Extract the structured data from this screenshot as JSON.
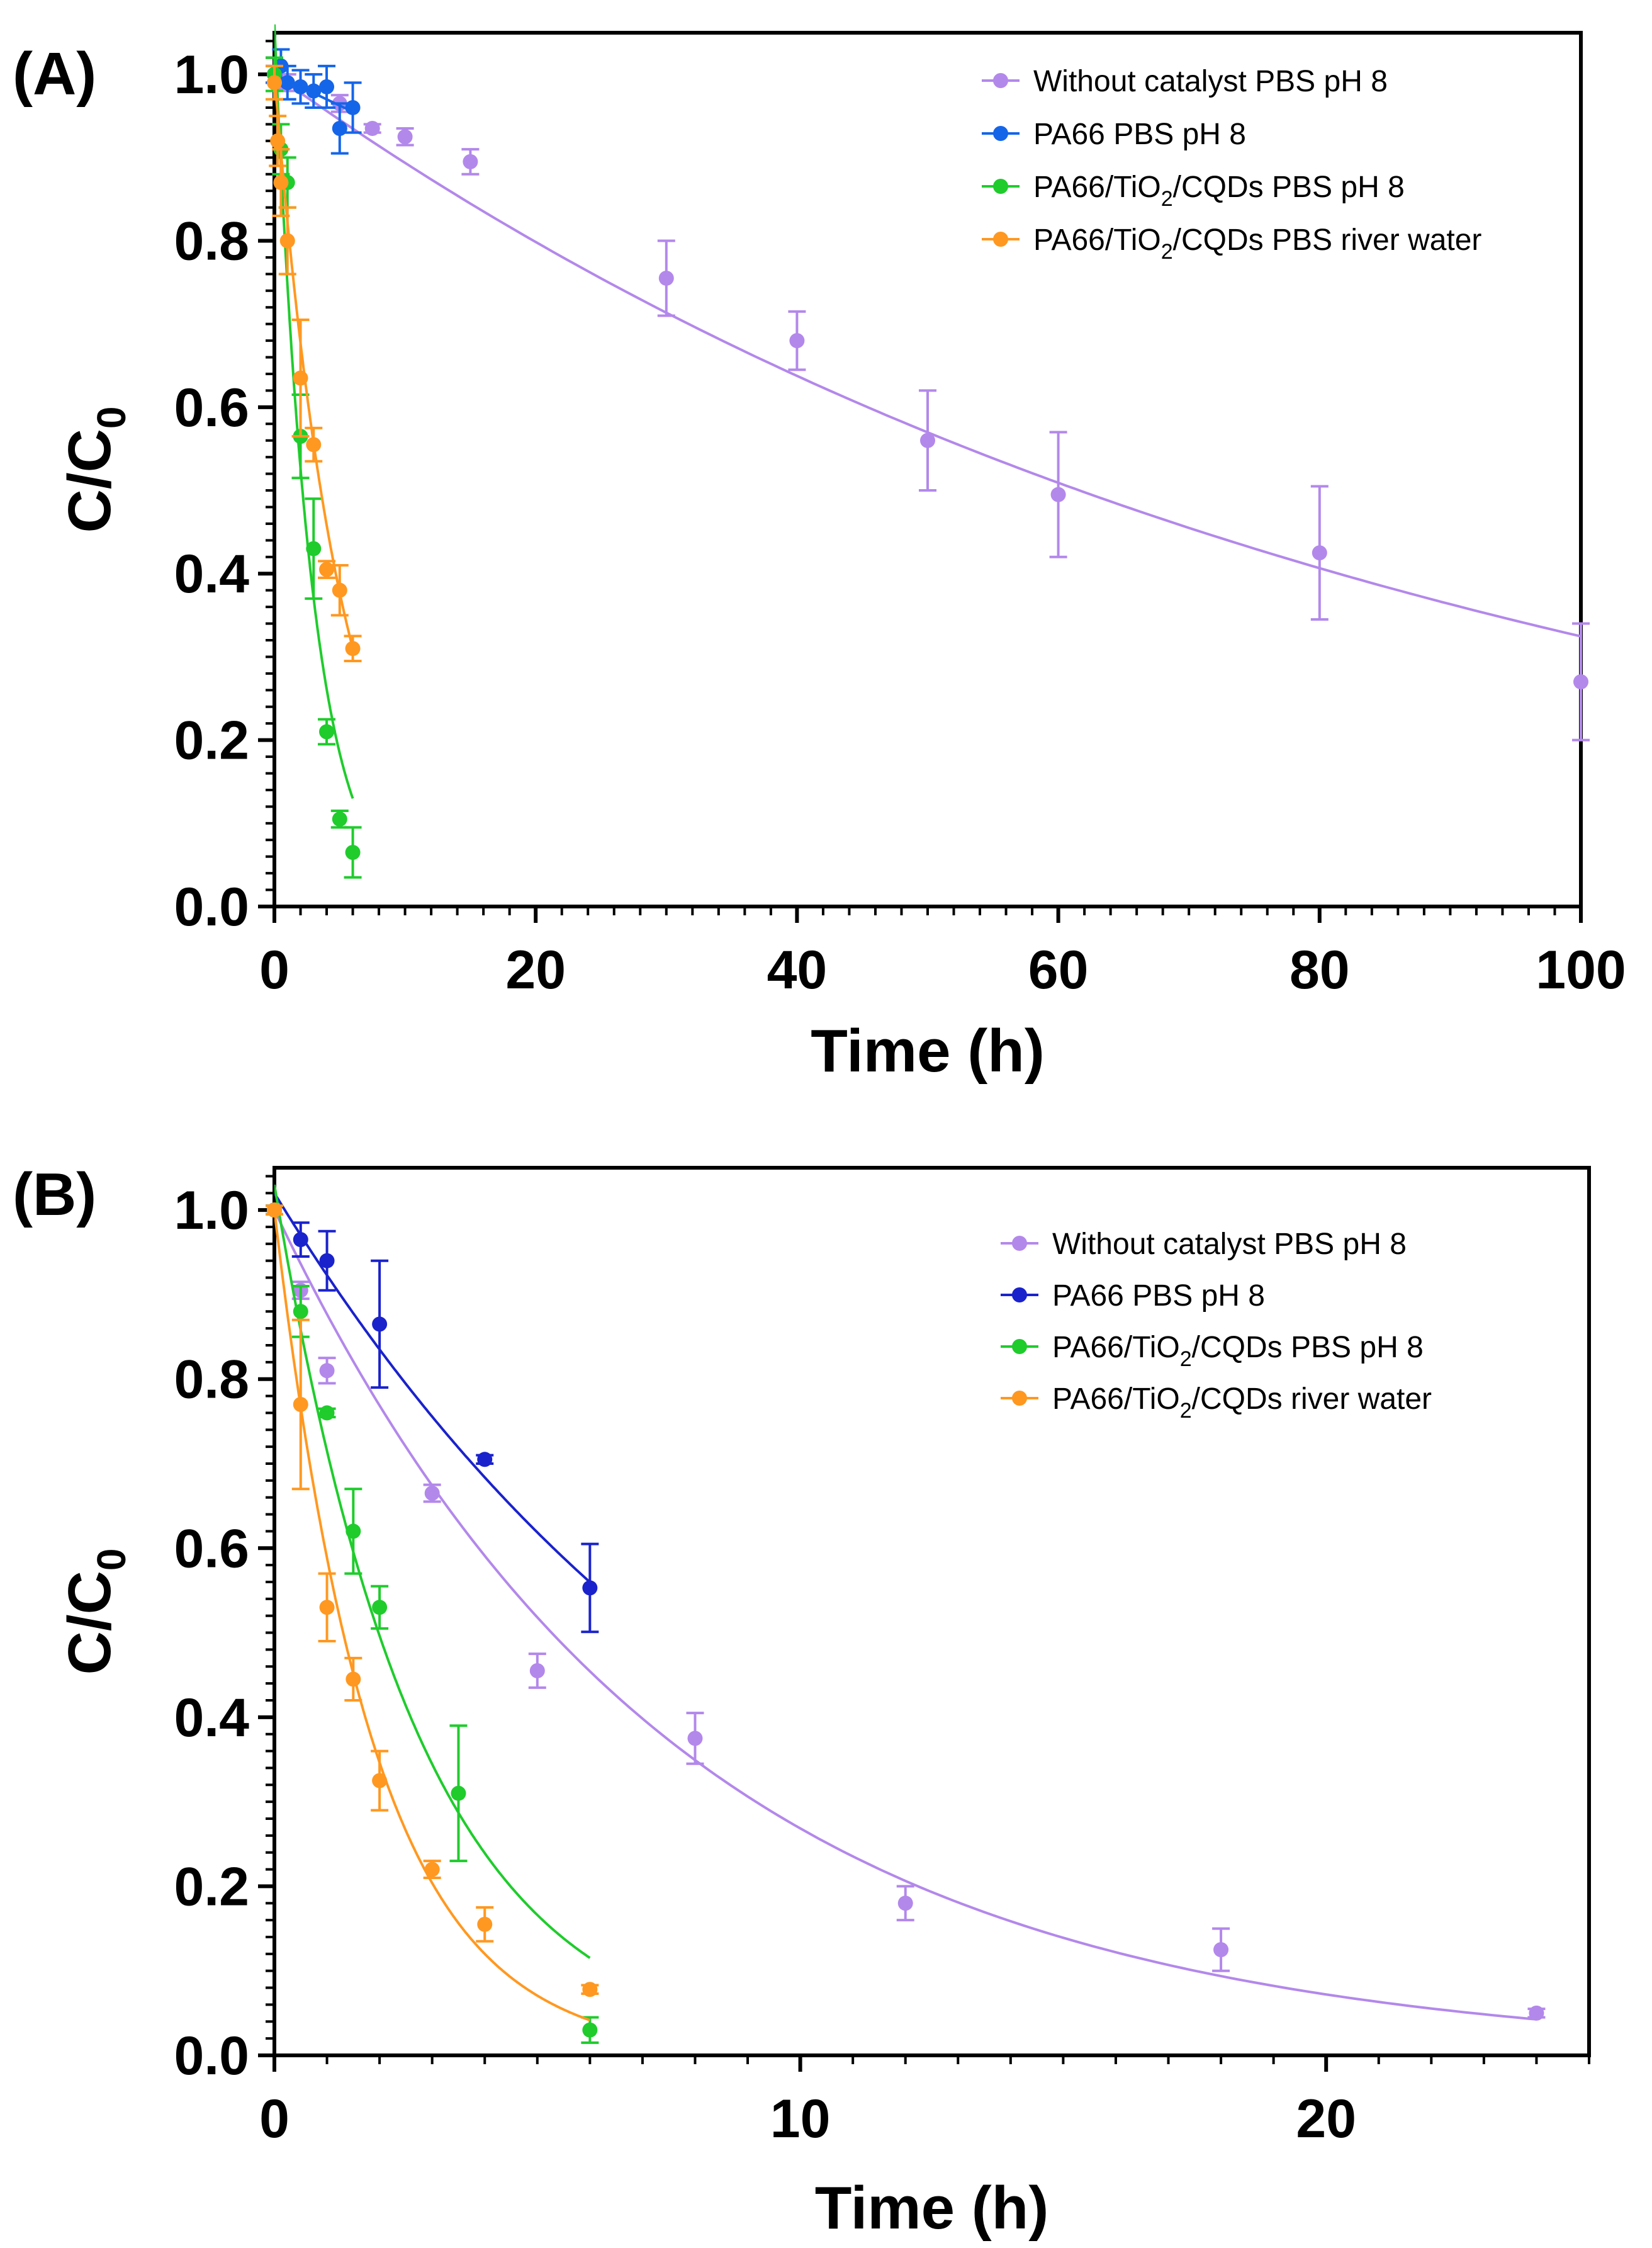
{
  "colors": {
    "purple": "#b388eb",
    "blue": "#1565e8",
    "blue_b": "#1a22cc",
    "green": "#1fcc2c",
    "orange": "#ff9820"
  },
  "chart_data": [
    {
      "type": "scatter",
      "panel_label": "(A)",
      "xlabel": "Time (h)",
      "ylabel_main": "C/C",
      "ylabel_sub": "0",
      "xlim": [
        0,
        100
      ],
      "ylim": [
        0,
        1.05
      ],
      "xticks": [
        0,
        20,
        40,
        60,
        80,
        100
      ],
      "xtick_labels": [
        "0",
        "20",
        "40",
        "60",
        "80",
        "100"
      ],
      "yticks": [
        0,
        0.2,
        0.4,
        0.6,
        0.8,
        1.0
      ],
      "ytick_labels": [
        "0.0",
        "0.2",
        "0.4",
        "0.6",
        "0.8",
        "1.0"
      ],
      "x_minor_step": 2,
      "legend_position": "top-right",
      "series": [
        {
          "name": "Without catalyst PBS pH 8",
          "legend": {
            "pre": "Without catalyst PBS pH 8",
            "sub": "",
            "post": ""
          },
          "color_key": "purple",
          "x": [
            0,
            0.5,
            1,
            5,
            7.5,
            10,
            15,
            30,
            40,
            50,
            60,
            80,
            100
          ],
          "y": [
            1.0,
            0.99,
            0.99,
            0.965,
            0.935,
            0.925,
            0.895,
            0.755,
            0.68,
            0.56,
            0.495,
            0.425,
            0.27
          ],
          "err": [
            0.01,
            0.01,
            0.01,
            0.01,
            0.005,
            0.01,
            0.015,
            0.045,
            0.035,
            0.06,
            0.075,
            0.08,
            0.07
          ],
          "fit": {
            "model": "exponential",
            "y0": 1.0,
            "k": 0.01125,
            "xmax": 100
          }
        },
        {
          "name": "PA66 PBS pH 8",
          "legend": {
            "pre": "PA66 PBS pH 8",
            "sub": "",
            "post": ""
          },
          "color_key": "blue",
          "x": [
            0,
            0.5,
            1,
            2,
            3,
            4,
            5,
            6
          ],
          "y": [
            1.0,
            1.01,
            0.99,
            0.985,
            0.98,
            0.985,
            0.935,
            0.96
          ],
          "err": [
            0.01,
            0.02,
            0.02,
            0.02,
            0.02,
            0.025,
            0.03,
            0.03
          ],
          "fit": {
            "model": "linear",
            "y0": 1.0,
            "slope": -0.0075,
            "xmax": 6
          }
        },
        {
          "name": "PA66/TiO2/CQDs PBS pH 8",
          "legend": {
            "pre": "PA66/TiO",
            "sub": "2",
            "post": "/CQDs PBS pH 8"
          },
          "color_key": "green",
          "x": [
            0,
            0.5,
            1,
            2,
            3,
            4,
            5,
            6
          ],
          "y": [
            1.0,
            0.91,
            0.87,
            0.565,
            0.43,
            0.21,
            0.105,
            0.065
          ],
          "err": [
            0.02,
            0.03,
            0.03,
            0.05,
            0.06,
            0.015,
            0.01,
            0.03
          ],
          "fit": {
            "model": "exponential",
            "y0": 1.06,
            "k": 0.35,
            "xmax": 6
          }
        },
        {
          "name": "PA66/TiO2/CQDs PBS river water",
          "legend": {
            "pre": "PA66/TiO",
            "sub": "2",
            "post": "/CQDs PBS river water"
          },
          "color_key": "orange",
          "x": [
            0,
            0.25,
            0.5,
            1,
            2,
            3,
            4,
            5,
            6
          ],
          "y": [
            0.99,
            0.92,
            0.87,
            0.8,
            0.635,
            0.555,
            0.405,
            0.38,
            0.31
          ],
          "err": [
            0.02,
            0.03,
            0.04,
            0.04,
            0.07,
            0.02,
            0.01,
            0.03,
            0.015
          ],
          "fit": {
            "model": "exponential",
            "y0": 1.0,
            "k": 0.195,
            "xmax": 6
          }
        }
      ]
    },
    {
      "type": "scatter",
      "panel_label": "(B)",
      "xlabel": "Time (h)",
      "ylabel_main": "C/C",
      "ylabel_sub": "0",
      "xlim": [
        0,
        25
      ],
      "ylim": [
        0,
        1.05
      ],
      "xticks": [
        0,
        10,
        20
      ],
      "xtick_labels": [
        "0",
        "10",
        "20"
      ],
      "yticks": [
        0,
        0.2,
        0.4,
        0.6,
        0.8,
        1.0
      ],
      "ytick_labels": [
        "0.0",
        "0.2",
        "0.4",
        "0.6",
        "0.8",
        "1.0"
      ],
      "x_minor_step": 1,
      "legend_position": "top-right",
      "series": [
        {
          "name": "Without catalyst PBS pH 8",
          "legend": {
            "pre": "Without catalyst PBS pH 8",
            "sub": "",
            "post": ""
          },
          "color_key": "purple",
          "x": [
            0,
            0.5,
            1,
            3,
            5,
            8,
            12,
            18,
            24
          ],
          "y": [
            1.0,
            0.905,
            0.81,
            0.665,
            0.455,
            0.375,
            0.18,
            0.125,
            0.05
          ],
          "err": [
            0.005,
            0.01,
            0.015,
            0.01,
            0.02,
            0.03,
            0.02,
            0.025,
            0.005
          ],
          "fit": {
            "model": "exponential",
            "y0": 1.0,
            "k": 0.1315,
            "xmax": 24
          }
        },
        {
          "name": "PA66 PBS pH 8",
          "legend": {
            "pre": "PA66 PBS pH 8",
            "sub": "",
            "post": ""
          },
          "color_key": "blue_b",
          "x": [
            0,
            0.5,
            1,
            2,
            4,
            6
          ],
          "y": [
            1.0,
            0.965,
            0.94,
            0.865,
            0.705,
            0.553
          ],
          "err": [
            0.005,
            0.02,
            0.035,
            0.075,
            0.005,
            0.052
          ],
          "fit": {
            "model": "exponential",
            "y0": 1.02,
            "k": 0.1,
            "xmax": 6
          }
        },
        {
          "name": "PA66/TiO2/CQDs PBS pH 8",
          "legend": {
            "pre": "PA66/TiO",
            "sub": "2",
            "post": "/CQDs PBS pH 8"
          },
          "color_key": "green",
          "x": [
            0,
            0.5,
            1,
            1.5,
            2,
            3.5,
            6
          ],
          "y": [
            1.0,
            0.88,
            0.76,
            0.62,
            0.53,
            0.31,
            0.03
          ],
          "err": [
            0.005,
            0.03,
            0.005,
            0.05,
            0.025,
            0.08,
            0.015
          ],
          "fit": {
            "model": "exponential",
            "y0": 1.03,
            "k": 0.365,
            "xmax": 6
          }
        },
        {
          "name": "PA66/TiO2/CQDs river water",
          "legend": {
            "pre": "PA66/TiO",
            "sub": "2",
            "post": "/CQDs river water"
          },
          "color_key": "orange",
          "x": [
            0,
            0.5,
            1,
            1.5,
            2,
            3,
            4,
            6
          ],
          "y": [
            1.0,
            0.77,
            0.53,
            0.445,
            0.325,
            0.22,
            0.155,
            0.078
          ],
          "err": [
            0.005,
            0.1,
            0.04,
            0.025,
            0.035,
            0.01,
            0.02,
            0.005
          ],
          "fit": {
            "model": "exponential",
            "y0": 1.0,
            "k": 0.53,
            "xmax": 6
          }
        }
      ]
    }
  ]
}
